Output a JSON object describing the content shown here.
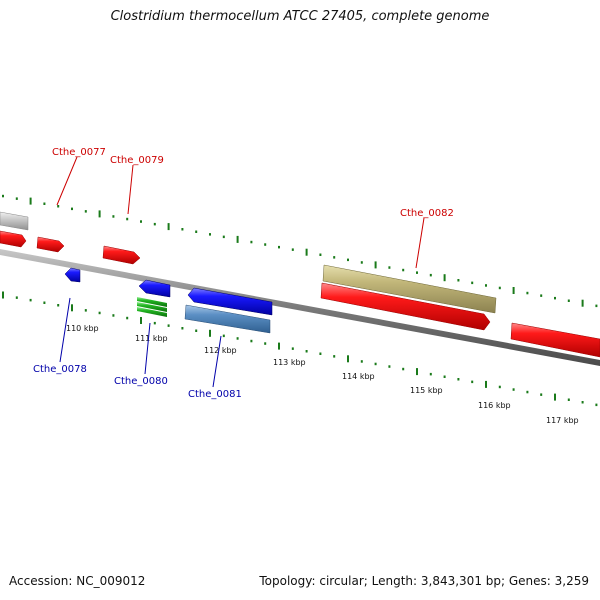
{
  "title": "Clostridium thermocellum ATCC 27405, complete genome",
  "footer": {
    "accession": "Accession: NC_009012",
    "topology": "Topology: circular; Length: 3,843,301 bp; Genes: 3,259"
  },
  "colors": {
    "forward_cds": "#e01010",
    "reverse_cds": "#1010e0",
    "backbone": "#808080",
    "tick": "#1a7a1a",
    "forward_label": "#cc0000",
    "reverse_label": "#0000aa"
  },
  "scale_labels": [
    "110 kbp",
    "111 kbp",
    "112 kbp",
    "113 kbp",
    "114 kbp",
    "115 kbp",
    "116 kbp",
    "117 kbp"
  ],
  "genes": [
    {
      "name": "Cthe_0077",
      "strand": "forward",
      "color": "#cc0000"
    },
    {
      "name": "Cthe_0078",
      "strand": "reverse",
      "color": "#0000aa"
    },
    {
      "name": "Cthe_0079",
      "strand": "forward",
      "color": "#cc0000"
    },
    {
      "name": "Cthe_0080",
      "strand": "reverse",
      "color": "#0000aa"
    },
    {
      "name": "Cthe_0081",
      "strand": "reverse",
      "color": "#0000aa"
    },
    {
      "name": "Cthe_0082",
      "strand": "forward",
      "color": "#cc0000"
    }
  ]
}
